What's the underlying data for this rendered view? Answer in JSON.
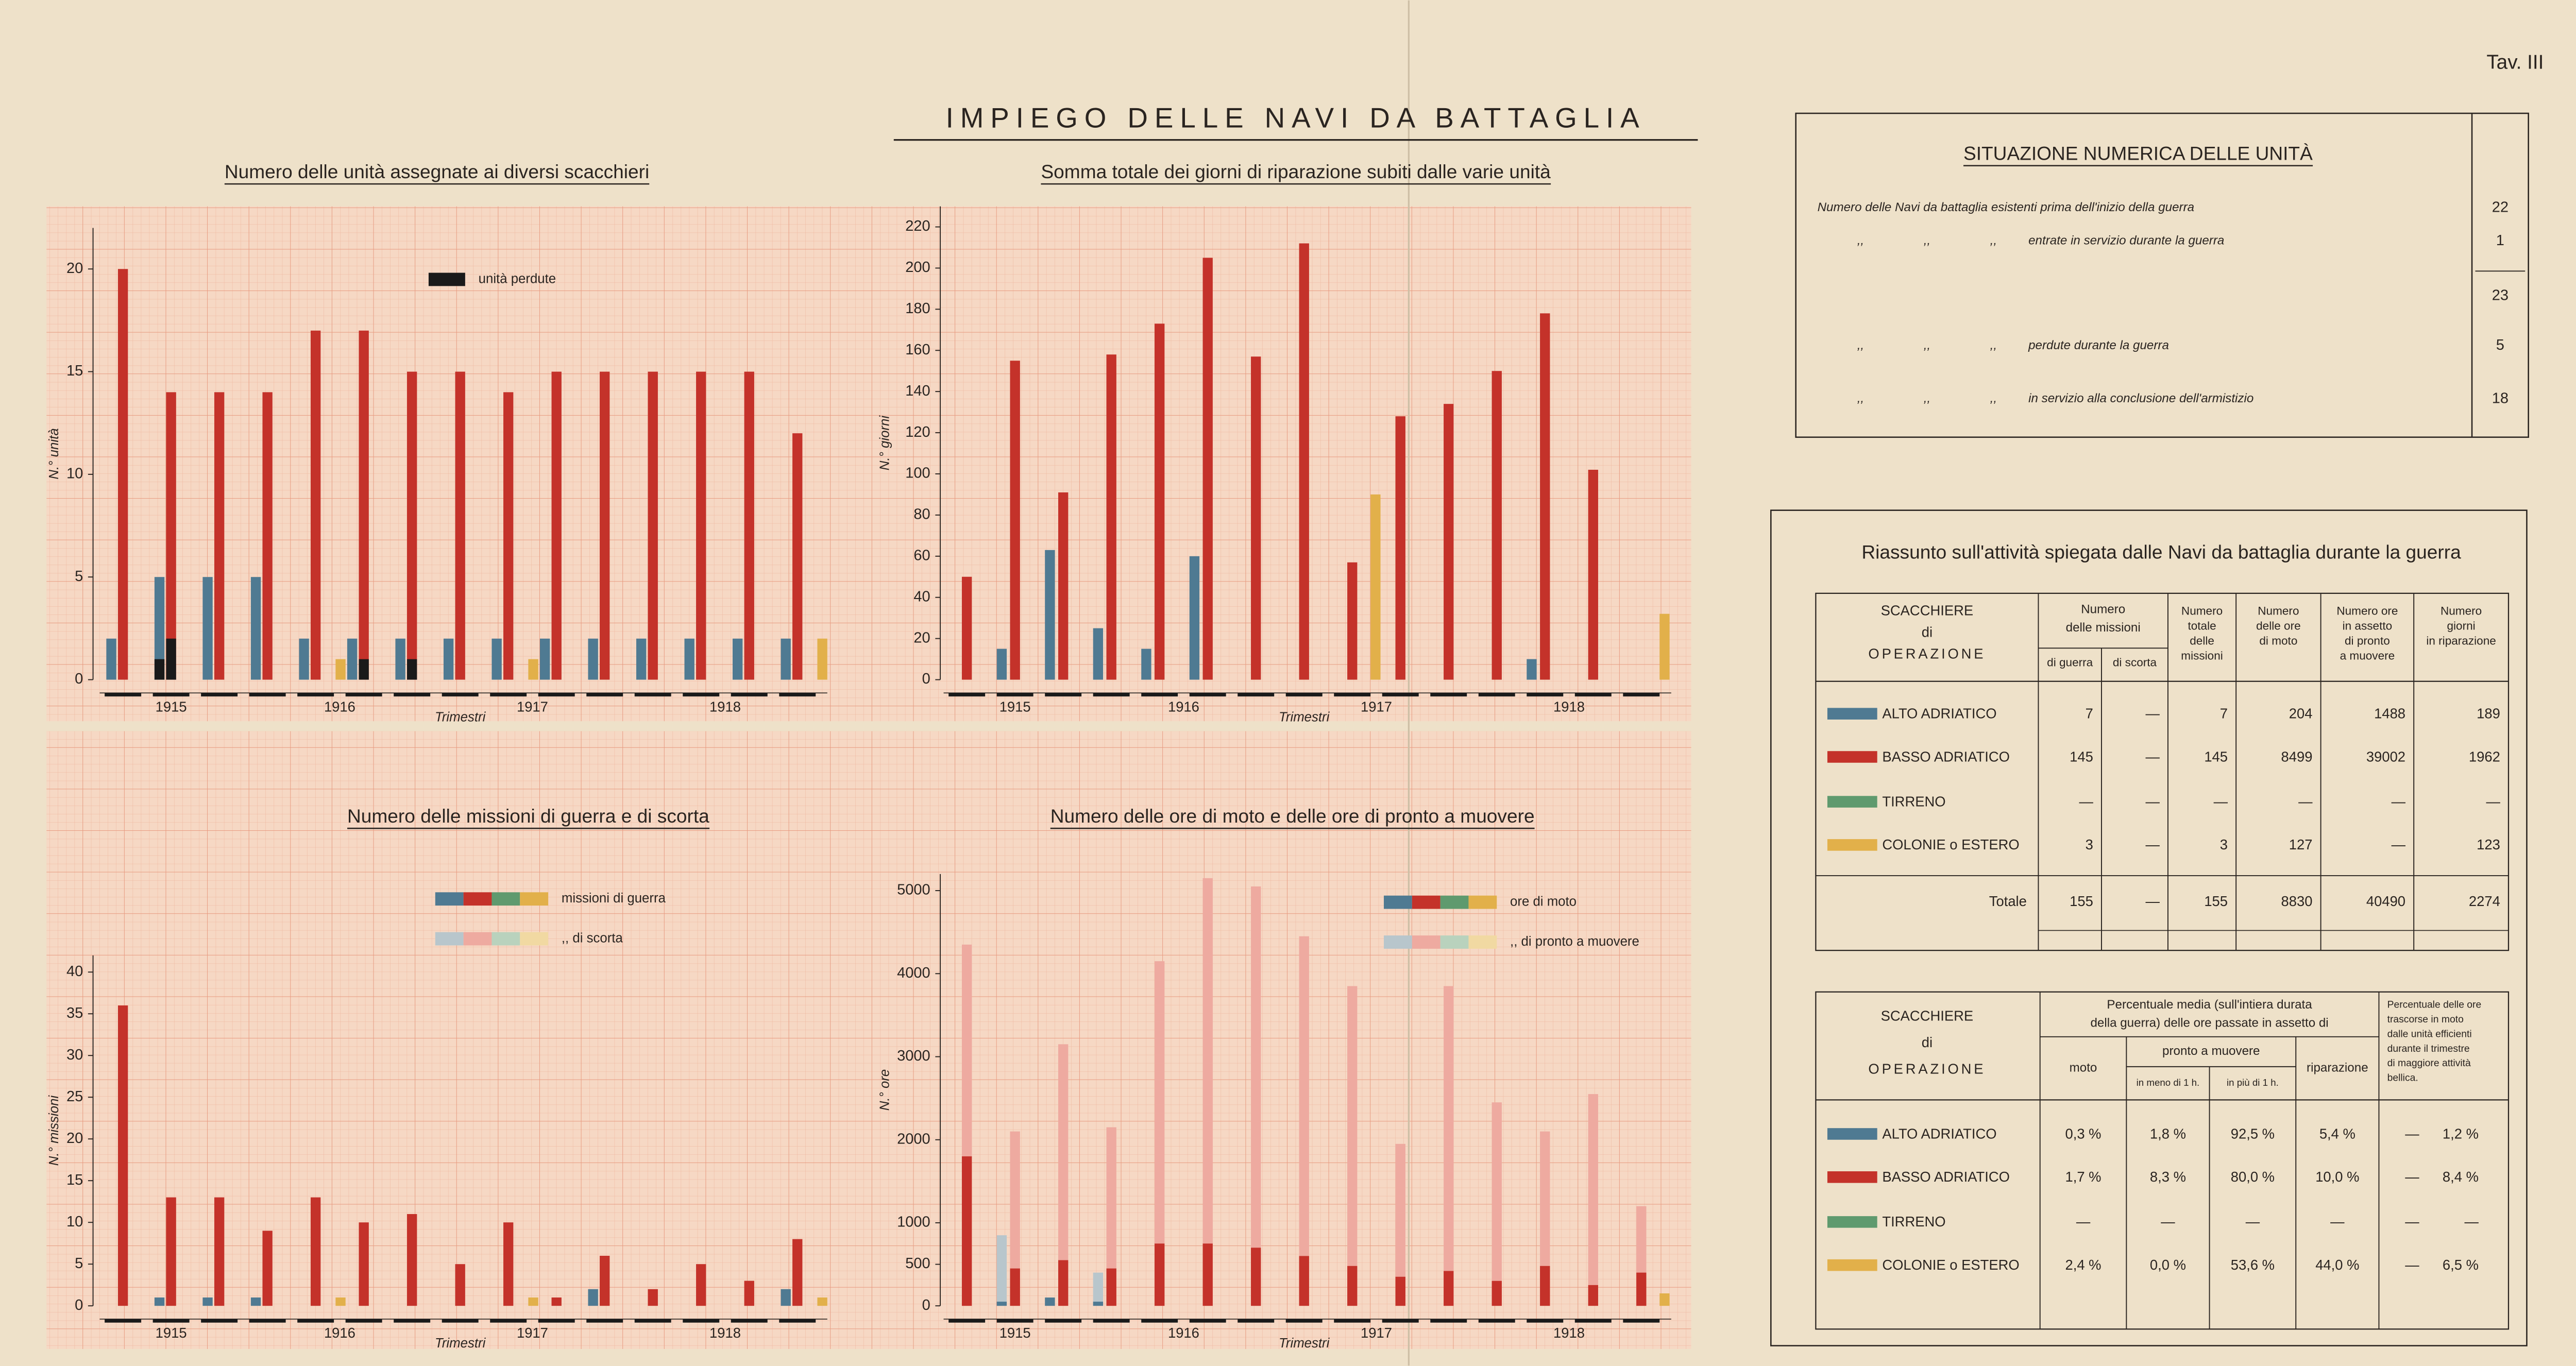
{
  "header": {
    "title": "IMPIEGO DELLE NAVI DA BATTAGLIA",
    "plate": "Tav. III"
  },
  "chart_data": [
    {
      "type": "bar",
      "title": "Numero delle unità assegnate ai diversi scacchieri",
      "ylabel": "N.° unità",
      "xlabel": "Trimestri",
      "years": [
        "1915",
        "1916",
        "1917",
        "1918"
      ],
      "categories": [
        null,
        null,
        null,
        null,
        null,
        null,
        null,
        null,
        null,
        null,
        null,
        null,
        null,
        null,
        null
      ],
      "ylim": [
        0,
        22
      ],
      "yticks": [
        0,
        5,
        10,
        15,
        20
      ],
      "series": [
        {
          "color": "#4f7a92",
          "values": [
            2,
            5,
            5,
            5,
            2,
            2,
            2,
            2,
            2,
            2,
            2,
            2,
            2,
            2,
            2
          ]
        },
        {
          "color": "#c4322a",
          "values": [
            20,
            14,
            14,
            14,
            17,
            17,
            15,
            15,
            14,
            15,
            15,
            15,
            15,
            15,
            12
          ]
        },
        {
          "color": "#e2b04a",
          "values": [
            null,
            null,
            null,
            null,
            1,
            null,
            null,
            null,
            1,
            null,
            null,
            null,
            null,
            null,
            2
          ]
        },
        {
          "name": "unità perdute",
          "color": "#1a1a1a",
          "values": [
            null,
            1,
            null,
            null,
            null,
            null,
            null,
            null,
            null,
            null,
            null,
            null,
            null,
            null,
            null
          ]
        },
        {
          "color": "#1a1a1a",
          "values": [
            null,
            2,
            null,
            null,
            null,
            1,
            1,
            null,
            null,
            null,
            null,
            null,
            null,
            null,
            null
          ]
        }
      ]
    },
    {
      "type": "bar",
      "title": "Somma totale dei giorni di riparazione subiti dalle varie unità",
      "ylabel": "N.° giorni",
      "xlabel": "Trimestri",
      "years": [
        "1915",
        "1916",
        "1917",
        "1918"
      ],
      "categories": [
        null,
        null,
        null,
        null,
        null,
        null,
        null,
        null,
        null,
        null,
        null,
        null,
        null,
        null,
        null
      ],
      "ylim": [
        0,
        230
      ],
      "yticks": [
        0,
        20,
        40,
        60,
        80,
        100,
        120,
        140,
        160,
        180,
        200,
        220
      ],
      "series": [
        {
          "color": "#4f7a92",
          "values": [
            null,
            15,
            63,
            25,
            15,
            60,
            null,
            null,
            null,
            null,
            null,
            null,
            10,
            null,
            null
          ]
        },
        {
          "color": "#c4322a",
          "values": [
            50,
            155,
            91,
            158,
            173,
            205,
            157,
            212,
            57,
            128,
            134,
            150,
            178,
            102,
            null
          ]
        },
        {
          "color": "#e2b04a",
          "values": [
            null,
            null,
            null,
            null,
            null,
            null,
            null,
            null,
            90,
            null,
            null,
            null,
            null,
            null,
            32
          ]
        }
      ]
    },
    {
      "type": "bar",
      "title": "Numero delle missioni di guerra e di scorta",
      "ylabel": "N.° missioni",
      "xlabel": "Trimestri",
      "years": [
        "1915",
        "1916",
        "1917",
        "1918"
      ],
      "categories": [
        null,
        null,
        null,
        null,
        null,
        null,
        null,
        null,
        null,
        null,
        null,
        null,
        null,
        null,
        null
      ],
      "ylim": [
        0,
        42
      ],
      "yticks": [
        0,
        5,
        10,
        15,
        20,
        25,
        30,
        35,
        40
      ],
      "legend": [
        {
          "label": "missioni di guerra",
          "colors": [
            "#4f7a92",
            "#c4322a",
            "#5f9a6e",
            "#e2b04a"
          ]
        },
        {
          "label": ",,   di scorta",
          "colors": [
            "#b8c6cc",
            "#eeaaa0",
            "#b9d2bd",
            "#f1d9a2"
          ]
        }
      ],
      "series": [
        {
          "color": "#4f7a92",
          "values": [
            null,
            1,
            1,
            1,
            null,
            null,
            null,
            null,
            null,
            null,
            2,
            null,
            null,
            null,
            2
          ]
        },
        {
          "color": "#c4322a",
          "values": [
            36,
            13,
            13,
            9,
            13,
            10,
            11,
            5,
            10,
            1,
            6,
            2,
            5,
            3,
            8
          ]
        },
        {
          "color": "#e2b04a",
          "values": [
            null,
            null,
            null,
            null,
            1,
            null,
            null,
            null,
            1,
            null,
            null,
            null,
            null,
            null,
            1
          ]
        }
      ]
    },
    {
      "type": "bar",
      "title": "Numero delle ore di moto e delle ore di pronto a muovere",
      "ylabel": "N.° ore",
      "xlabel": "Trimestri",
      "years": [
        "1915",
        "1916",
        "1917",
        "1918"
      ],
      "categories": [
        null,
        null,
        null,
        null,
        null,
        null,
        null,
        null,
        null,
        null,
        null,
        null,
        null,
        null,
        null
      ],
      "ylim": [
        0,
        5200
      ],
      "yticks": [
        0,
        500,
        1000,
        2000,
        3000,
        4000,
        5000
      ],
      "legend": [
        {
          "label": "ore di moto",
          "colors": [
            "#4f7a92",
            "#c4322a",
            "#5f9a6e",
            "#e2b04a"
          ]
        },
        {
          "label": ",,   di pronto a muovere",
          "colors": [
            "#b8c6cc",
            "#eeaaa0",
            "#b9d2bd",
            "#f1d9a2"
          ]
        }
      ],
      "series": [
        {
          "color": "#b8c6cc",
          "values": [
            null,
            850,
            null,
            400,
            null,
            null,
            null,
            null,
            null,
            null,
            null,
            null,
            null,
            null,
            null
          ]
        },
        {
          "color": "#eeaaa0",
          "values": [
            4350,
            2100,
            3150,
            2150,
            4150,
            5150,
            5050,
            4450,
            3850,
            1950,
            3850,
            2450,
            2100,
            2550,
            1200
          ]
        },
        {
          "color": "#4f7a92",
          "values": [
            null,
            50,
            100,
            50,
            null,
            null,
            null,
            null,
            null,
            null,
            null,
            null,
            null,
            null,
            null
          ]
        },
        {
          "color": "#c4322a",
          "values": [
            1800,
            450,
            550,
            450,
            750,
            750,
            700,
            600,
            480,
            350,
            420,
            300,
            480,
            250,
            400
          ]
        },
        {
          "color": "#e2b04a",
          "values": [
            null,
            null,
            null,
            null,
            null,
            null,
            null,
            null,
            null,
            null,
            null,
            null,
            null,
            null,
            150
          ]
        }
      ]
    }
  ],
  "situazione": {
    "title": "SITUAZIONE NUMERICA DELLE UNITÀ",
    "rows": [
      {
        "label": "Numero delle Navi da battaglia esistenti prima dell'inizio della guerra",
        "value": "22"
      },
      {
        "ditto": [
          ",,",
          ",,",
          ",,"
        ],
        "label": "entrate in servizio durante la guerra",
        "value": "1"
      },
      {
        "value": "23"
      },
      {
        "ditto": [
          ",,",
          ",,",
          ",,"
        ],
        "label": "perdute durante la guerra",
        "value": "5"
      },
      {
        "ditto": [
          ",,",
          ",,",
          ",,"
        ],
        "label": "in servizio alla conclusione dell'armistizio",
        "value": "18"
      }
    ]
  },
  "riassunto": {
    "title": "Riassunto sull'attività spiegata dalle Navi da battaglia durante la guerra",
    "header": {
      "scacchiere": [
        "SCACCHIERE",
        "di",
        "OPERAZIONE"
      ],
      "missioni": [
        "Numero",
        "delle missioni"
      ],
      "sub": [
        "di guerra",
        "di scorta"
      ],
      "cols": [
        [
          "Numero",
          "totale",
          "delle",
          "missioni"
        ],
        [
          "Numero",
          "delle ore",
          "di moto"
        ],
        [
          "Numero ore",
          "in assetto",
          "di pronto",
          "a muovere"
        ],
        [
          "Numero",
          "giorni",
          "in riparazione"
        ]
      ]
    },
    "rows": [
      {
        "label": "ALTO ADRIATICO",
        "color": "#4f7a92",
        "cells": [
          "7",
          "—",
          "7",
          "204",
          "1488",
          "189"
        ]
      },
      {
        "label": "BASSO ADRIATICO",
        "color": "#c4322a",
        "cells": [
          "145",
          "—",
          "145",
          "8499",
          "39002",
          "1962"
        ]
      },
      {
        "label": "TIRRENO",
        "color": "#5f9a6e",
        "cells": [
          "—",
          "—",
          "—",
          "—",
          "—",
          "—"
        ]
      },
      {
        "label": "COLONIE o ESTERO",
        "color": "#e2b04a",
        "cells": [
          "3",
          "—",
          "3",
          "127",
          "—",
          "123"
        ]
      }
    ],
    "total": {
      "label": "Totale",
      "cells": [
        "155",
        "—",
        "155",
        "8830",
        "40490",
        "2274"
      ]
    }
  },
  "percentuali": {
    "header": {
      "scacchiere": [
        "SCACCHIERE",
        "di",
        "OPERAZIONE"
      ],
      "group": [
        "Percentuale media (sull'intiera durata",
        "della guerra) delle ore passate in assetto di"
      ],
      "moto": "moto",
      "pronto": "pronto a muovere",
      "sub": [
        "in meno di 1 h.",
        "in più di 1 h."
      ],
      "riparazione": "riparazione",
      "note": [
        "Percentuale delle ore",
        "trascorse in moto",
        "dalle unità efficienti",
        "durante il trimestre",
        "di maggiore attività",
        "bellica."
      ]
    },
    "rows": [
      {
        "label": "ALTO ADRIATICO",
        "color": "#4f7a92",
        "cells": [
          "0,3 %",
          "1,8 %",
          "92,5 %",
          "5,4 %",
          "—",
          "1,2 %"
        ]
      },
      {
        "label": "BASSO ADRIATICO",
        "color": "#c4322a",
        "cells": [
          "1,7 %",
          "8,3 %",
          "80,0 %",
          "10,0 %",
          "—",
          "8,4 %"
        ]
      },
      {
        "label": "TIRRENO",
        "color": "#5f9a6e",
        "cells": [
          "—",
          "—",
          "—",
          "—",
          "—",
          "—"
        ]
      },
      {
        "label": "COLONIE o ESTERO",
        "color": "#e2b04a",
        "cells": [
          "2,4 %",
          "0,0 %",
          "53,6 %",
          "44,0 %",
          "—",
          "6,5 %"
        ]
      }
    ]
  }
}
